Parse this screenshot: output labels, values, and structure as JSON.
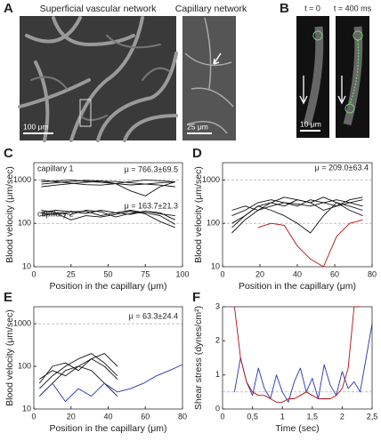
{
  "panel_labels": [
    "A",
    "B"
  ],
  "images": {
    "superficial_title": "Superficial vascular network",
    "capillary_title": "Capillary network",
    "scale_100": "100 μm",
    "scale_25": "25 μm",
    "t0": "t = 0",
    "t400": "t = 400 ms",
    "scale_10": "10 μm"
  },
  "chart_data": [
    {
      "type": "line",
      "panel": "C",
      "ylabel": "Blood velocity (μm/sec)",
      "xlabel": "Position in the capillary (μm)",
      "ylog": true,
      "ylim": [
        10,
        2500
      ],
      "yticks": [
        10,
        100,
        1000
      ],
      "xlim": [
        0,
        100
      ],
      "xticks": [
        0,
        25,
        50,
        75,
        100
      ],
      "reference_lines": [
        100,
        1000
      ],
      "annotations": [
        "capillary 1",
        "capillary 2",
        "μ = 766.3±69.5",
        "μ = 163.7±21.3"
      ],
      "x": [
        5,
        15,
        25,
        35,
        45,
        55,
        65,
        75,
        85,
        95
      ],
      "series": [
        {
          "color": "#111",
          "values": [
            900,
            950,
            1000,
            930,
            880,
            820,
            770,
            800,
            860,
            900
          ]
        },
        {
          "color": "#111",
          "values": [
            800,
            860,
            920,
            980,
            950,
            820,
            560,
            430,
            700,
            900
          ]
        },
        {
          "color": "#111",
          "values": [
            1000,
            900,
            840,
            780,
            760,
            820,
            920,
            1000,
            960,
            900
          ]
        },
        {
          "color": "#111",
          "values": [
            700,
            760,
            820,
            880,
            940,
            920,
            860,
            800,
            760,
            700
          ]
        },
        {
          "color": "#111",
          "values": [
            180,
            200,
            185,
            170,
            200,
            175,
            160,
            190,
            165,
            150
          ]
        },
        {
          "color": "#111",
          "values": [
            170,
            160,
            185,
            190,
            150,
            175,
            200,
            175,
            150,
            95
          ]
        },
        {
          "color": "#111",
          "values": [
            200,
            175,
            160,
            200,
            185,
            140,
            170,
            190,
            175,
            120
          ]
        },
        {
          "color": "#111",
          "values": [
            150,
            170,
            120,
            150,
            140,
            160,
            190,
            165,
            110,
            80
          ]
        }
      ]
    },
    {
      "type": "line",
      "panel": "D",
      "ylabel": "Blood velocity (μm/sec)",
      "xlabel": "Position in the capillary (μm)",
      "ylog": true,
      "ylim": [
        10,
        2500
      ],
      "yticks": [
        10,
        100,
        1000
      ],
      "xlim": [
        0,
        80
      ],
      "xticks": [
        0,
        20,
        40,
        60,
        80
      ],
      "reference_lines": [
        100,
        1000
      ],
      "annotations": [
        "μ = 209.0±63.4"
      ],
      "x": [
        5,
        12,
        19,
        26,
        33,
        40,
        47,
        54,
        61,
        68,
        75
      ],
      "series": [
        {
          "color": "#111",
          "values": [
            60,
            120,
            200,
            250,
            300,
            280,
            250,
            300,
            350,
            300,
            250
          ]
        },
        {
          "color": "#111",
          "values": [
            100,
            150,
            250,
            300,
            250,
            350,
            300,
            400,
            300,
            200,
            150
          ]
        },
        {
          "color": "#111",
          "values": [
            150,
            200,
            300,
            350,
            300,
            250,
            350,
            300,
            250,
            300,
            350
          ]
        },
        {
          "color": "#111",
          "values": [
            200,
            250,
            200,
            300,
            400,
            350,
            300,
            200,
            250,
            350,
            400
          ]
        },
        {
          "color": "#111",
          "values": [
            80,
            150,
            250,
            200,
            150,
            100,
            60,
            150,
            300,
            250,
            200
          ]
        },
        {
          "color": "#b01010",
          "values": [
            null,
            null,
            80,
            100,
            90,
            30,
            15,
            10,
            50,
            100,
            120
          ]
        }
      ]
    },
    {
      "type": "line",
      "panel": "E",
      "ylabel": "Blood velocity (μm/sec)",
      "xlabel": "Position in the capillary (μm)",
      "ylog": true,
      "ylim": [
        10,
        2500
      ],
      "yticks": [
        10,
        100,
        1000
      ],
      "xlim": [
        0,
        80
      ],
      "xticks": [
        0,
        20,
        40,
        60,
        80
      ],
      "reference_lines": [
        1000
      ],
      "annotations": [
        "μ = 63.3±24.4"
      ],
      "x": [
        3,
        10,
        17,
        24,
        31,
        38,
        45,
        52,
        59,
        66,
        73,
        80
      ],
      "series": [
        {
          "color": "#111",
          "values": [
            30,
            60,
            100,
            150,
            200,
            120,
            60,
            null,
            null,
            null,
            null,
            null
          ]
        },
        {
          "color": "#111",
          "values": [
            20,
            40,
            80,
            100,
            150,
            200,
            100,
            null,
            null,
            null,
            null,
            null
          ]
        },
        {
          "color": "#111",
          "values": [
            50,
            80,
            60,
            100,
            80,
            40,
            20,
            null,
            null,
            null,
            null,
            null
          ]
        },
        {
          "color": "#111",
          "values": [
            40,
            100,
            120,
            80,
            150,
            100,
            50,
            null,
            null,
            null,
            null,
            null
          ]
        },
        {
          "color": "#2233aa",
          "values": [
            20,
            40,
            15,
            30,
            20,
            40,
            25,
            30,
            40,
            60,
            80,
            110
          ]
        }
      ]
    },
    {
      "type": "line",
      "panel": "F",
      "ylabel": "Shear stress (dynes/cm²)",
      "xlabel": "Time (sec)",
      "ylog": false,
      "ylim": [
        0,
        3
      ],
      "yticks": [
        0,
        1,
        2,
        3
      ],
      "xlim": [
        0,
        2.5
      ],
      "xticks": [
        0,
        {
          "value": 0.5,
          "label": "0,5"
        },
        1,
        {
          "value": 1.5,
          "label": "1,5"
        },
        2,
        {
          "value": 2.5,
          "label": "2,5"
        }
      ],
      "reference_lines": [
        0.5
      ],
      "annotations": [],
      "x": [
        0.2,
        0.3,
        0.4,
        0.5,
        0.6,
        0.7,
        0.8,
        0.9,
        1.0,
        1.1,
        1.2,
        1.3,
        1.4,
        1.5,
        1.6,
        1.7,
        1.8,
        1.9,
        2.0,
        2.1,
        2.2,
        2.3,
        2.4,
        2.5
      ],
      "series": [
        {
          "color": "#2233aa",
          "values": [
            0.5,
            1.5,
            0.8,
            0.4,
            1.2,
            0.6,
            0.3,
            1.0,
            0.5,
            0.2,
            0.8,
            1.2,
            0.5,
            0.9,
            0.3,
            1.3,
            0.7,
            0.4,
            1.1,
            0.6,
            0.8,
            0.5,
            1.5,
            2.5
          ]
        },
        {
          "color": "#b01010",
          "values": [
            3,
            1.5,
            0.8,
            0.5,
            0.4,
            0.4,
            0.3,
            0.2,
            0.2,
            0.3,
            0.3,
            0.4,
            0.5,
            0.4,
            0.3,
            0.3,
            0.3,
            0.4,
            0.6,
            1.2,
            3,
            3,
            null,
            null
          ]
        }
      ]
    }
  ]
}
